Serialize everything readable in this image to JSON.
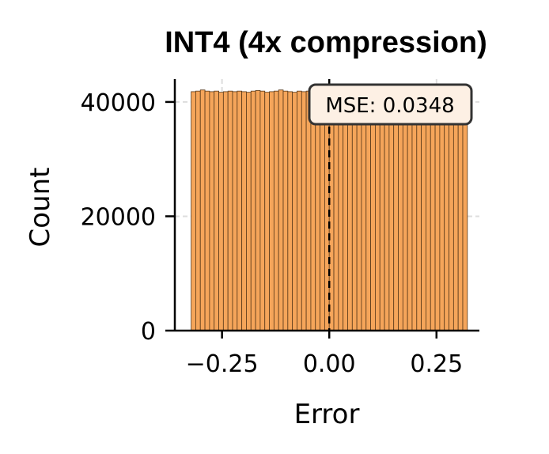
{
  "chart_data": {
    "type": "bar",
    "title": "INT4 (4x compression)",
    "xlabel": "Error",
    "ylabel": "Count",
    "xlim": [
      -0.36,
      0.35
    ],
    "ylim": [
      0,
      44000
    ],
    "xticks": [
      "−0.25",
      "0.00",
      "0.25"
    ],
    "xtick_values": [
      -0.25,
      0.0,
      0.25
    ],
    "yticks": [
      "0",
      "20000",
      "40000"
    ],
    "ytick_values": [
      0,
      20000,
      40000
    ],
    "grid": true,
    "bar_color": "#f5a55a",
    "bar_edge_color": "#5a3a1a",
    "reference_line": {
      "x": 0.0,
      "style": "dashed",
      "color": "#000000"
    },
    "annotation": {
      "text": "MSE: 0.0348",
      "position": "top-right"
    },
    "bins": {
      "start": -0.322,
      "end": 0.322,
      "counts": [
        41800,
        41900,
        42100,
        41900,
        41800,
        41900,
        41700,
        41800,
        41900,
        41800,
        41900,
        41800,
        41700,
        41900,
        42000,
        41900,
        41700,
        41800,
        41900,
        42100,
        41900,
        41800,
        41700,
        41900,
        41800,
        41900,
        42000,
        41800,
        41700,
        41900,
        41800,
        41900,
        41800,
        41900,
        41700,
        41800,
        41900,
        42000,
        41800,
        41900,
        41700,
        41800,
        41900,
        41800,
        41900,
        41700,
        41800,
        41900,
        42000,
        41800,
        41700,
        41900,
        41800,
        41900,
        41800,
        41700,
        41900,
        41800,
        41900,
        41800
      ]
    }
  }
}
